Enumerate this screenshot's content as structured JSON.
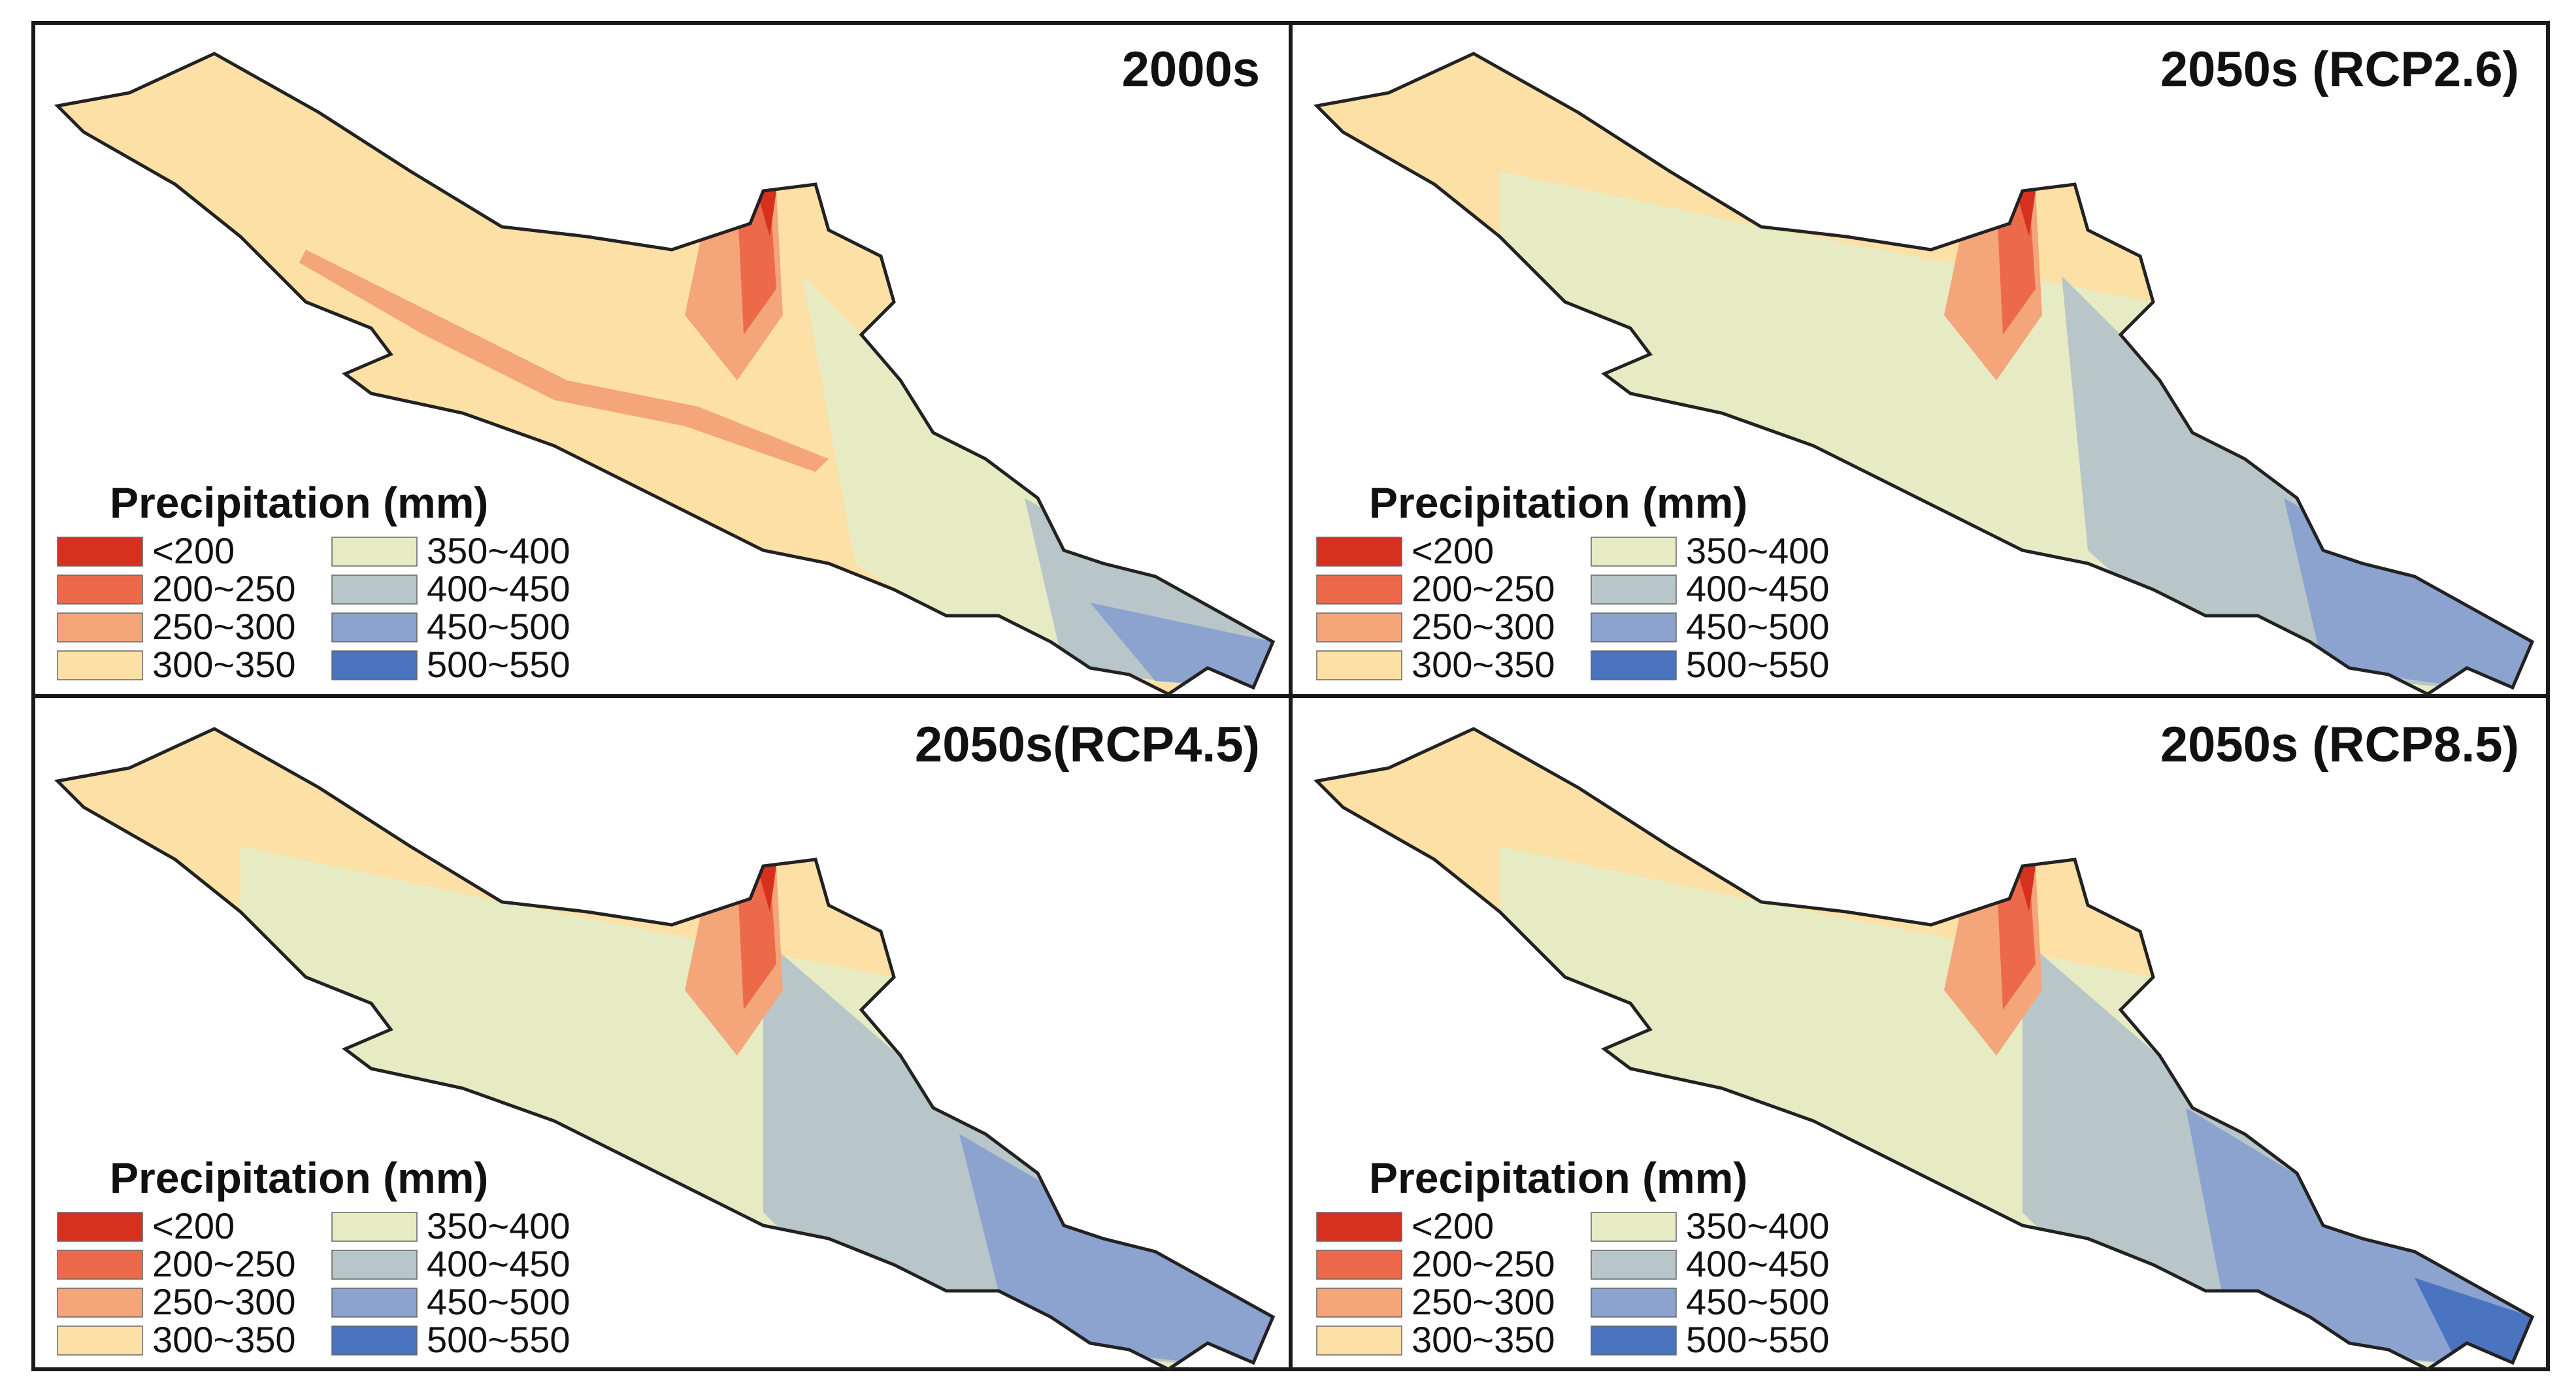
{
  "figure": {
    "panels": [
      {
        "id": "p2000s",
        "title": "2000s"
      },
      {
        "id": "p26",
        "title": "2050s (RCP2.6)"
      },
      {
        "id": "p45",
        "title": "2050s(RCP4.5)"
      },
      {
        "id": "p85",
        "title": "2050s (RCP8.5)"
      }
    ],
    "legend": {
      "title": "Precipitation (mm)",
      "classes": [
        {
          "label": "<200",
          "color": "#d7301f"
        },
        {
          "label": "200~250",
          "color": "#ec6a4a"
        },
        {
          "label": "250~300",
          "color": "#f4a57a"
        },
        {
          "label": "300~350",
          "color": "#fde0a6"
        },
        {
          "label": "350~400",
          "color": "#e6ebc3"
        },
        {
          "label": "400~450",
          "color": "#b8c6c9"
        },
        {
          "label": "450~500",
          "color": "#8ca2cf"
        },
        {
          "label": "500~550",
          "color": "#4a73c0"
        }
      ]
    }
  }
}
